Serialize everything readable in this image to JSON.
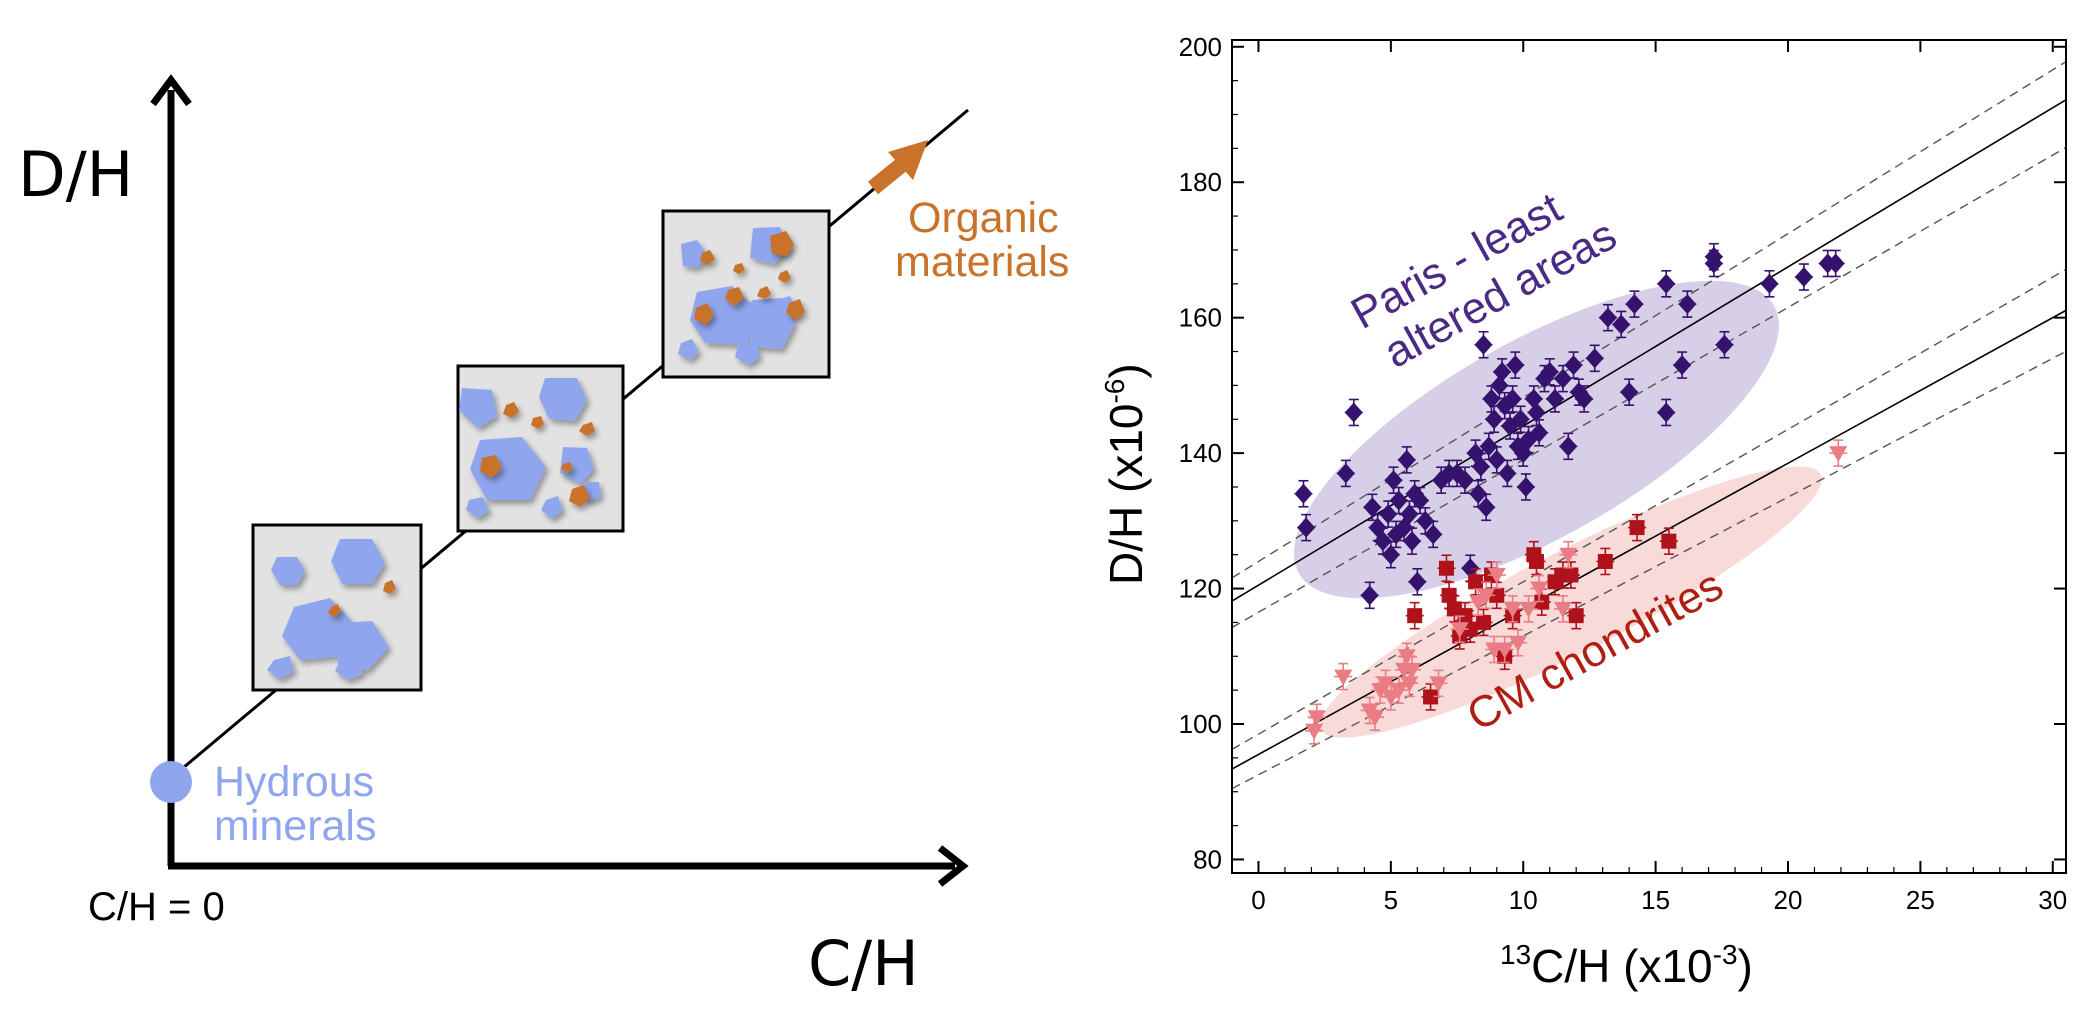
{
  "schematic": {
    "y_axis_label": "D/H",
    "x_axis_label": "C/H",
    "origin_label": "C/H = 0",
    "start_label_line1": "Hydrous",
    "start_label_line2": "minerals",
    "end_label_line1": "Organic",
    "end_label_line2": "materials",
    "colors": {
      "hydrous": "#8fa6ee",
      "organic": "#c8722a",
      "box_fill": "#e2e2e2",
      "axis": "#000000"
    }
  },
  "chart_data": {
    "type": "scatter",
    "xlabel_sup": "13",
    "xlabel_main": "C/H (x10",
    "xlabel_exp": "-3",
    "xlabel_end": ")",
    "ylabel_main": "D/H (x10",
    "ylabel_exp": "-6",
    "ylabel_end": ")",
    "xlim": [
      -1,
      30.5
    ],
    "ylim": [
      78,
      201
    ],
    "xticks": [
      0,
      5,
      10,
      15,
      20,
      25,
      30
    ],
    "yticks": [
      80,
      100,
      120,
      140,
      160,
      180,
      200
    ],
    "grid": false,
    "annotations": [
      {
        "text1": "Paris - least",
        "text2": "altered areas",
        "color": "#4a2a85"
      },
      {
        "text1": "CM chondrites",
        "color": "#b01e12"
      }
    ],
    "regions": [
      {
        "cx": 10.5,
        "cy": 142,
        "rx": 10.3,
        "ry": 14.5,
        "angle_data_slope": 2.2,
        "color": "#c9bfdf"
      },
      {
        "cx": 11.8,
        "cy": 118,
        "rx": 10.6,
        "ry": 7.5,
        "angle_data_slope": 2.0,
        "color": "#f6cfcb"
      }
    ],
    "fit_lines": [
      {
        "intercept": 120.5,
        "slope": 2.35,
        "style": "solid"
      },
      {
        "intercept": 124,
        "slope": 2.42,
        "style": "dashed"
      },
      {
        "intercept": 116.5,
        "slope": 2.25,
        "style": "dashed"
      },
      {
        "intercept": 95.5,
        "slope": 2.15,
        "style": "solid"
      },
      {
        "intercept": 98.5,
        "slope": 2.25,
        "style": "dashed"
      },
      {
        "intercept": 92.5,
        "slope": 2.05,
        "style": "dashed"
      }
    ],
    "series": [
      {
        "marker": "diamond",
        "color": "#35126e",
        "points": [
          [
            1.7,
            134
          ],
          [
            1.8,
            129
          ],
          [
            3.3,
            137
          ],
          [
            3.6,
            146
          ],
          [
            4.2,
            119
          ],
          [
            4.3,
            132
          ],
          [
            4.5,
            129
          ],
          [
            4.7,
            127
          ],
          [
            4.9,
            131
          ],
          [
            5.0,
            125
          ],
          [
            5.1,
            136
          ],
          [
            5.2,
            128
          ],
          [
            5.3,
            133
          ],
          [
            5.5,
            129
          ],
          [
            5.6,
            139
          ],
          [
            5.7,
            131
          ],
          [
            5.8,
            127
          ],
          [
            5.9,
            134
          ],
          [
            6.0,
            121
          ],
          [
            6.1,
            133
          ],
          [
            6.3,
            130
          ],
          [
            6.6,
            128
          ],
          [
            6.9,
            136
          ],
          [
            7.2,
            137
          ],
          [
            7.5,
            137
          ],
          [
            7.8,
            136
          ],
          [
            8.0,
            123
          ],
          [
            8.2,
            140
          ],
          [
            8.3,
            134
          ],
          [
            8.4,
            138
          ],
          [
            8.5,
            156
          ],
          [
            8.6,
            132
          ],
          [
            8.7,
            141
          ],
          [
            8.8,
            148
          ],
          [
            8.9,
            145
          ],
          [
            9.0,
            139
          ],
          [
            9.1,
            150
          ],
          [
            9.2,
            152
          ],
          [
            9.3,
            147
          ],
          [
            9.4,
            137
          ],
          [
            9.5,
            144
          ],
          [
            9.6,
            148
          ],
          [
            9.7,
            153
          ],
          [
            9.8,
            141
          ],
          [
            9.9,
            145
          ],
          [
            10.0,
            140
          ],
          [
            10.1,
            135
          ],
          [
            10.2,
            142
          ],
          [
            10.4,
            148
          ],
          [
            10.5,
            146
          ],
          [
            10.6,
            143
          ],
          [
            10.8,
            151
          ],
          [
            11.0,
            152
          ],
          [
            11.2,
            148
          ],
          [
            11.5,
            151
          ],
          [
            11.7,
            141
          ],
          [
            11.9,
            153
          ],
          [
            12.1,
            149
          ],
          [
            12.3,
            148
          ],
          [
            12.7,
            154
          ],
          [
            13.2,
            160
          ],
          [
            13.7,
            159
          ],
          [
            14.0,
            149
          ],
          [
            14.2,
            162
          ],
          [
            15.4,
            165
          ],
          [
            15.4,
            146
          ],
          [
            16.0,
            153
          ],
          [
            16.2,
            162
          ],
          [
            17.2,
            169
          ],
          [
            17.2,
            168
          ],
          [
            17.6,
            156
          ],
          [
            19.3,
            165
          ],
          [
            20.6,
            166
          ],
          [
            21.5,
            168
          ],
          [
            21.8,
            168
          ]
        ]
      },
      {
        "marker": "square",
        "color": "#b0121c",
        "points": [
          [
            5.9,
            116
          ],
          [
            6.5,
            104
          ],
          [
            7.1,
            123
          ],
          [
            7.2,
            119
          ],
          [
            7.4,
            117
          ],
          [
            7.6,
            113
          ],
          [
            7.8,
            116
          ],
          [
            8.0,
            114
          ],
          [
            8.2,
            121
          ],
          [
            8.5,
            115
          ],
          [
            8.8,
            122
          ],
          [
            9.0,
            119
          ],
          [
            9.3,
            110
          ],
          [
            9.6,
            116
          ],
          [
            10.4,
            125
          ],
          [
            10.5,
            124
          ],
          [
            10.7,
            118
          ],
          [
            11.2,
            121
          ],
          [
            11.5,
            122
          ],
          [
            11.8,
            122
          ],
          [
            12.0,
            116
          ],
          [
            13.1,
            124
          ],
          [
            14.3,
            129
          ],
          [
            15.5,
            127
          ]
        ]
      },
      {
        "marker": "triangle",
        "color": "#ea7d84",
        "points": [
          [
            2.1,
            99
          ],
          [
            2.2,
            101
          ],
          [
            3.2,
            107
          ],
          [
            4.2,
            102
          ],
          [
            4.4,
            101
          ],
          [
            4.6,
            105
          ],
          [
            4.8,
            106
          ],
          [
            5.0,
            104
          ],
          [
            5.3,
            105
          ],
          [
            5.5,
            108
          ],
          [
            5.6,
            110
          ],
          [
            5.7,
            106
          ],
          [
            5.8,
            108
          ],
          [
            6.8,
            106
          ],
          [
            7.6,
            114
          ],
          [
            8.3,
            118
          ],
          [
            8.6,
            119
          ],
          [
            8.9,
            111
          ],
          [
            9.0,
            122
          ],
          [
            9.3,
            111
          ],
          [
            9.6,
            117
          ],
          [
            9.8,
            112
          ],
          [
            10.2,
            117
          ],
          [
            10.6,
            120
          ],
          [
            11.5,
            117
          ],
          [
            11.7,
            125
          ],
          [
            21.9,
            140
          ]
        ]
      }
    ]
  }
}
